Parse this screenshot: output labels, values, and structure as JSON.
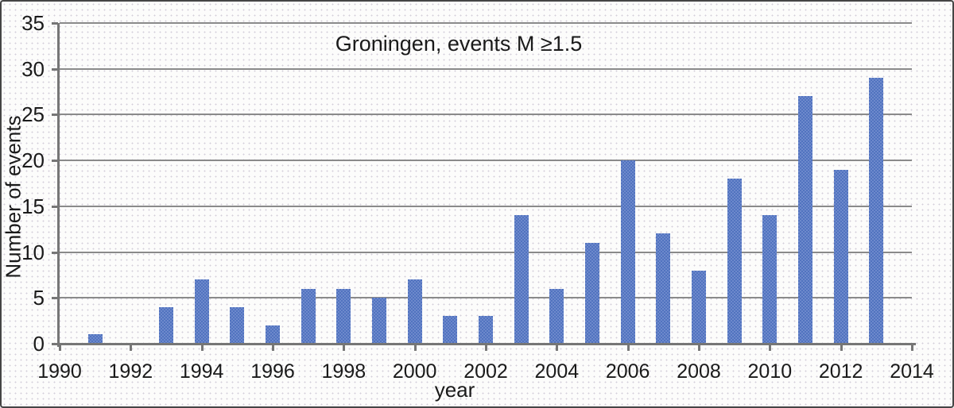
{
  "chart_data": {
    "type": "bar",
    "title": "Groningen, events M ≥1.5",
    "xlabel": "year",
    "ylabel": "Number of events",
    "categories": [
      "1991",
      "1992",
      "1993",
      "1994",
      "1995",
      "1996",
      "1997",
      "1998",
      "1999",
      "2000",
      "2001",
      "2002",
      "2003",
      "2004",
      "2005",
      "2006",
      "2007",
      "2008",
      "2009",
      "2010",
      "2011",
      "2012",
      "2013"
    ],
    "values": [
      1,
      0,
      4,
      7,
      4,
      2,
      6,
      6,
      5,
      7,
      3,
      3,
      14,
      6,
      11,
      20,
      12,
      8,
      18,
      14,
      27,
      19,
      29
    ],
    "x_tick_labels": [
      "1990",
      "1992",
      "1994",
      "1996",
      "1998",
      "2000",
      "2002",
      "2004",
      "2006",
      "2008",
      "2010",
      "2012",
      "2014"
    ],
    "y_tick_labels": [
      "0",
      "5",
      "10",
      "15",
      "20",
      "25",
      "30",
      "35"
    ],
    "xlim": [
      1990,
      2014
    ],
    "ylim": [
      0,
      35
    ],
    "y_step": 5,
    "x_label_step": 2,
    "grid": "horizontal-only",
    "legend": false,
    "colors": {
      "bar": "#5f7ec5",
      "bar_checker_light": "#6d89cc",
      "bar_checker_dark": "#5173bf",
      "gridline": "#8a8a8a",
      "axis": "#767676",
      "text": "#1a1a1a",
      "background": "#fcfcfb",
      "frame": "#454545"
    }
  }
}
